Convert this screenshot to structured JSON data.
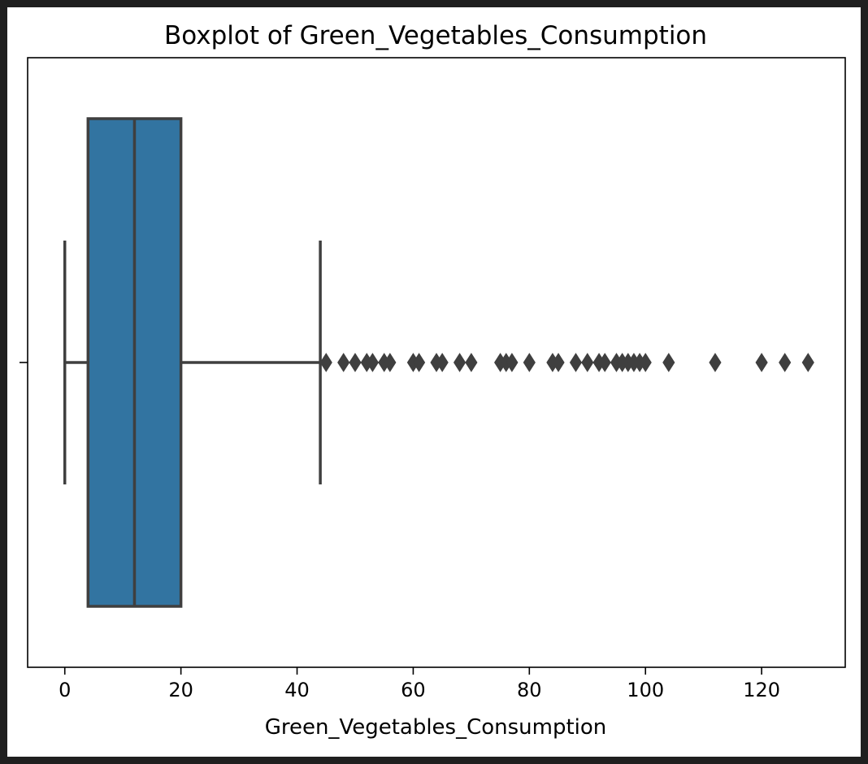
{
  "chart_data": {
    "type": "boxplot",
    "title": "Boxplot of Green_Vegetables_Consumption",
    "xlabel": "Green_Vegetables_Consumption",
    "ylabel": "",
    "orientation": "horizontal",
    "xlim": [
      -6.4,
      134.4
    ],
    "xticks": [
      0,
      20,
      40,
      60,
      80,
      100,
      120
    ],
    "xtick_labels": [
      "0",
      "20",
      "40",
      "60",
      "80",
      "100",
      "120"
    ],
    "grid": false,
    "box": {
      "whisker_low": 0,
      "q1": 4,
      "median": 12,
      "q3": 20,
      "whisker_high": 44
    },
    "outliers": [
      45,
      48,
      50,
      52,
      53,
      55,
      56,
      60,
      61,
      64,
      65,
      68,
      70,
      75,
      76,
      77,
      80,
      84,
      85,
      88,
      90,
      92,
      93,
      95,
      96,
      97,
      98,
      99,
      100,
      104,
      112,
      120,
      124,
      128
    ],
    "colors": {
      "box_fill": "#3274a1",
      "line": "#3f3f3f",
      "outlier": "#3f3f3f",
      "background": "#ffffff",
      "frame": "#1f1f1f"
    }
  }
}
